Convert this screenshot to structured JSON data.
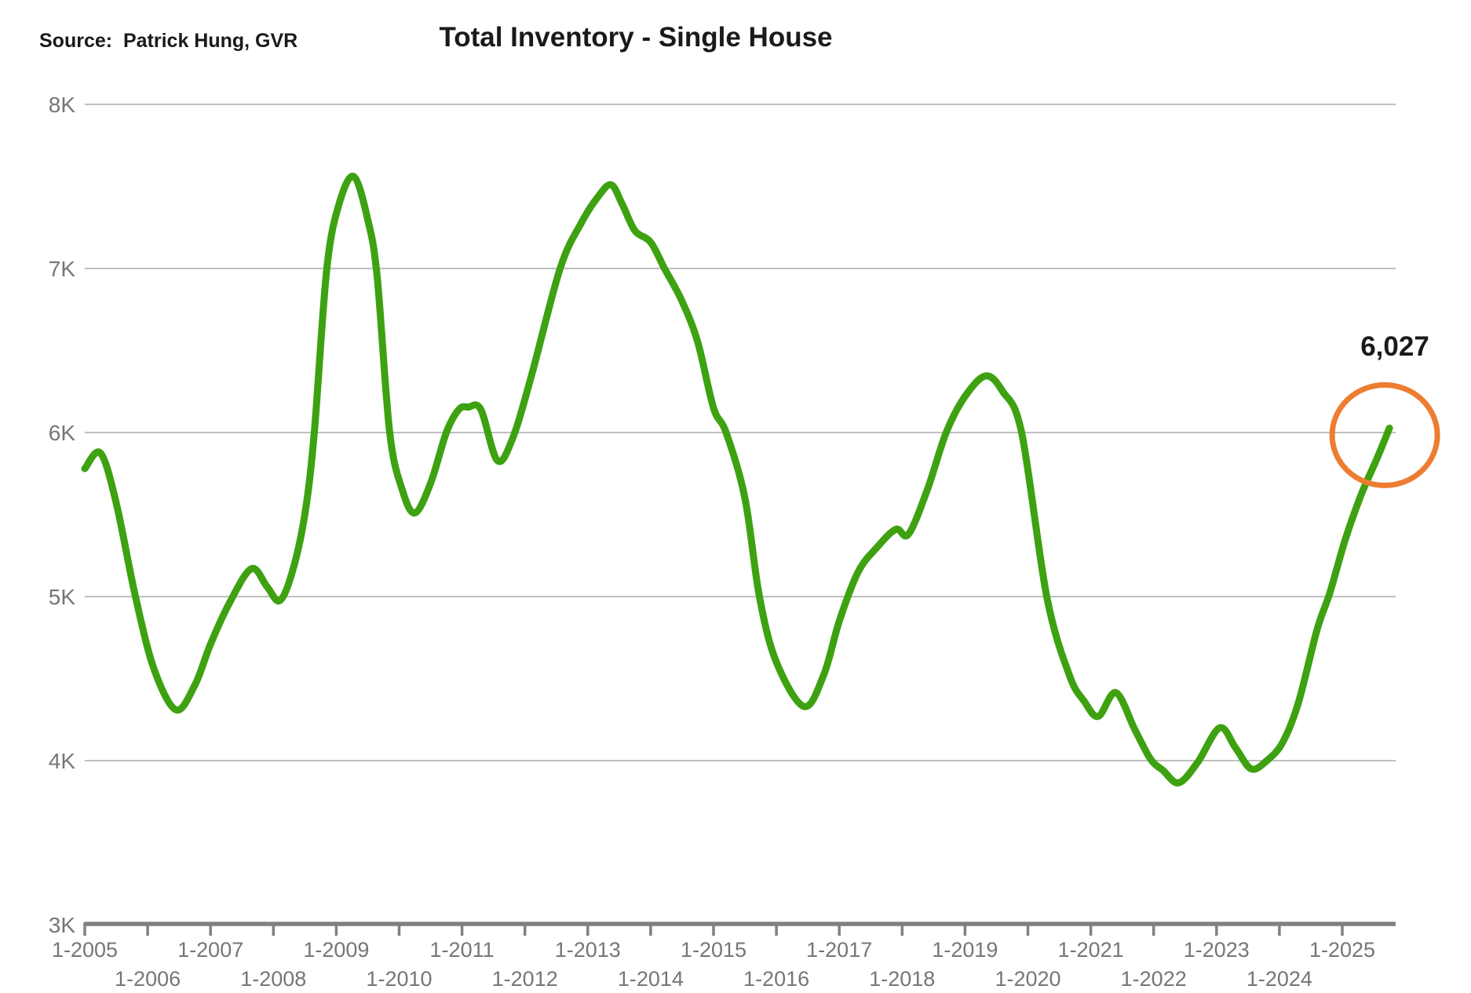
{
  "header": {
    "source": "Source:  Patrick Hung, GVR",
    "title": "Total Inventory - Single House"
  },
  "annotation": {
    "value": "6,027"
  },
  "colors": {
    "line": "#3EA111",
    "highlight_circle": "#ED7D31",
    "gridline": "#BFBFBF",
    "axis": "#808080",
    "axis_label": "#767676",
    "text": "#1A1A1A"
  },
  "chart_data": {
    "type": "line",
    "title": "Total Inventory - Single House",
    "series_name": "Total Inventory - Single House",
    "legend": "none",
    "grid": "horizontal",
    "ylim": [
      3000,
      8000
    ],
    "y_ticks": [
      {
        "label": "3K",
        "value": 3000,
        "baseline": true
      },
      {
        "label": "4K",
        "value": 4000
      },
      {
        "label": "5K",
        "value": 5000
      },
      {
        "label": "6K",
        "value": 6000
      },
      {
        "label": "7K",
        "value": 7000
      },
      {
        "label": "8K",
        "value": 8000
      }
    ],
    "x_tick_labels": [
      "1-2005",
      "1-2006",
      "1-2007",
      "1-2008",
      "1-2009",
      "1-2010",
      "1-2011",
      "1-2012",
      "1-2013",
      "1-2014",
      "1-2015",
      "1-2016",
      "1-2017",
      "1-2018",
      "1-2019",
      "1-2020",
      "1-2021",
      "1-2022",
      "1-2023",
      "1-2024",
      "1-2025"
    ],
    "x_tick_label_layout": "staggered-two-rows",
    "x_axis_unit": "t = years since Jan 2005 (monthly inventory series)",
    "last_point_value": 6027,
    "last_point_label": "6,027",
    "points": [
      [
        0.0,
        5780
      ],
      [
        0.25,
        5875
      ],
      [
        0.5,
        5570
      ],
      [
        0.8,
        5010
      ],
      [
        1.1,
        4560
      ],
      [
        1.45,
        4310
      ],
      [
        1.75,
        4460
      ],
      [
        2.0,
        4710
      ],
      [
        2.3,
        4960
      ],
      [
        2.65,
        5170
      ],
      [
        2.9,
        5060
      ],
      [
        3.1,
        4975
      ],
      [
        3.3,
        5150
      ],
      [
        3.5,
        5500
      ],
      [
        3.65,
        6000
      ],
      [
        3.85,
        7000
      ],
      [
        4.05,
        7400
      ],
      [
        4.28,
        7560
      ],
      [
        4.5,
        7300
      ],
      [
        4.65,
        6950
      ],
      [
        4.85,
        6000
      ],
      [
        5.05,
        5650
      ],
      [
        5.25,
        5510
      ],
      [
        5.5,
        5690
      ],
      [
        5.75,
        6000
      ],
      [
        5.95,
        6140
      ],
      [
        6.1,
        6155
      ],
      [
        6.3,
        6140
      ],
      [
        6.56,
        5830
      ],
      [
        6.8,
        5960
      ],
      [
        7.1,
        6340
      ],
      [
        7.56,
        7000
      ],
      [
        7.9,
        7280
      ],
      [
        8.15,
        7430
      ],
      [
        8.37,
        7510
      ],
      [
        8.55,
        7390
      ],
      [
        8.75,
        7230
      ],
      [
        9.0,
        7160
      ],
      [
        9.22,
        7000
      ],
      [
        9.5,
        6800
      ],
      [
        9.75,
        6550
      ],
      [
        10.0,
        6150
      ],
      [
        10.2,
        6000
      ],
      [
        10.5,
        5600
      ],
      [
        10.73,
        5000
      ],
      [
        11.0,
        4600
      ],
      [
        11.44,
        4330
      ],
      [
        11.75,
        4520
      ],
      [
        12.0,
        4850
      ],
      [
        12.3,
        5150
      ],
      [
        12.6,
        5300
      ],
      [
        12.9,
        5410
      ],
      [
        13.1,
        5380
      ],
      [
        13.4,
        5650
      ],
      [
        13.7,
        6000
      ],
      [
        14.0,
        6220
      ],
      [
        14.33,
        6345
      ],
      [
        14.6,
        6250
      ],
      [
        14.9,
        6000
      ],
      [
        15.3,
        5000
      ],
      [
        15.66,
        4520
      ],
      [
        15.9,
        4360
      ],
      [
        16.12,
        4270
      ],
      [
        16.4,
        4415
      ],
      [
        16.7,
        4190
      ],
      [
        16.95,
        4010
      ],
      [
        17.15,
        3940
      ],
      [
        17.4,
        3865
      ],
      [
        17.7,
        3990
      ],
      [
        18.05,
        4200
      ],
      [
        18.3,
        4080
      ],
      [
        18.55,
        3950
      ],
      [
        18.8,
        4000
      ],
      [
        19.05,
        4110
      ],
      [
        19.3,
        4350
      ],
      [
        19.6,
        4800
      ],
      [
        19.8,
        5020
      ],
      [
        20.05,
        5350
      ],
      [
        20.3,
        5620
      ],
      [
        20.55,
        5840
      ],
      [
        20.75,
        6027
      ]
    ]
  }
}
